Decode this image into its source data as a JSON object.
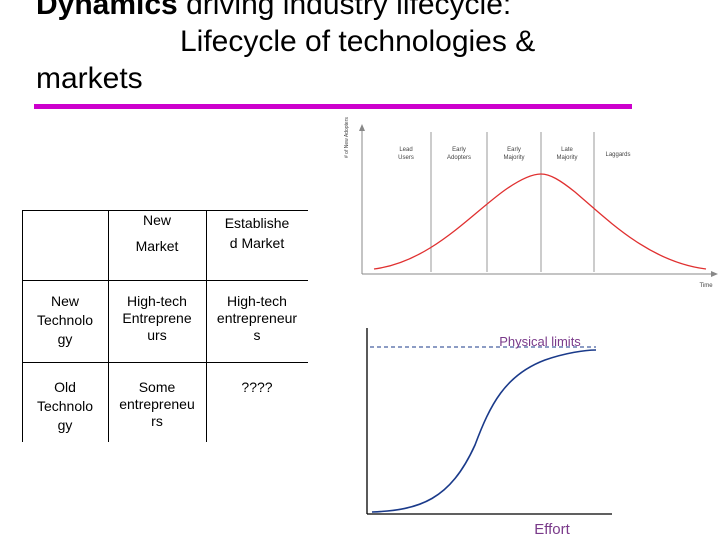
{
  "title": {
    "bold": "Dynamics",
    "rest": " driving industry lifecycle:",
    "line2": "Lifecycle of technologies &",
    "line3": "markets"
  },
  "matrix": {
    "col_new": "New\nMarket",
    "col_established": "Establishe\nd Market",
    "row_new": "New\nTechnolo\ngy",
    "row_old": "Old\nTechnolo\ngy",
    "cell_new_new": "High-tech\nEntreprene\nurs",
    "cell_new_est": "High-tech\nentrepreneur\ns",
    "cell_old_new": "Some\nentrepreneu\nrs",
    "cell_old_est": "????"
  },
  "adoption_curve": {
    "y_label": "# of New Adopters",
    "x_label": "Time",
    "segments": [
      "Lead\nUsers",
      "Early\nAdopters",
      "Early\nMajority",
      "Late\nMajority",
      "Laggards"
    ],
    "curve_color": "#e03030"
  },
  "s_curve": {
    "limit_label": "Physical limits",
    "x_label": "Effort",
    "curve_color": "#1a3a8a",
    "label_color": "#7a3a8a"
  }
}
